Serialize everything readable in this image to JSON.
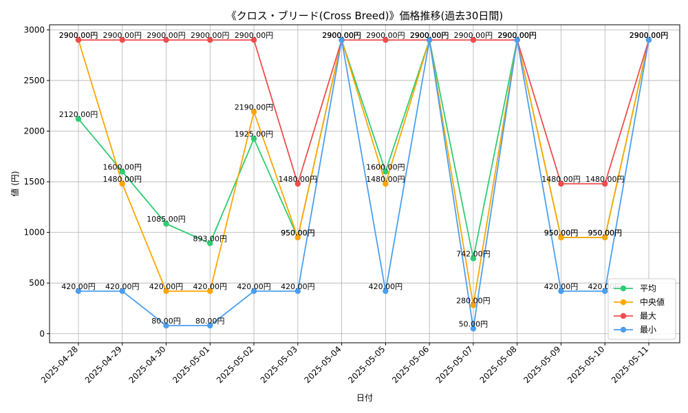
{
  "chart_data": {
    "type": "line",
    "title": "《クロス・ブリード(Cross Breed)》価格推移(過去30日間)",
    "xlabel": "日付",
    "ylabel": "値 (円)",
    "ylim": [
      -90,
      3050
    ],
    "yticks": [
      0,
      500,
      1000,
      1500,
      2000,
      2500,
      3000
    ],
    "grid": true,
    "legend_position": "lower-right",
    "label_suffix": "円",
    "categories": [
      "2025-04-28",
      "2025-04-29",
      "2025-04-30",
      "2025-05-01",
      "2025-05-02",
      "2025-05-03",
      "2025-05-04",
      "2025-05-05",
      "2025-05-06",
      "2025-05-07",
      "2025-05-08",
      "2025-05-09",
      "2025-05-10",
      "2025-05-11"
    ],
    "series": [
      {
        "name": "平均",
        "color": "#2ecc71",
        "values": [
          2120,
          1600,
          1085,
          893,
          1925,
          950,
          2900,
          1600,
          2900,
          742,
          2900,
          950,
          950,
          2900
        ]
      },
      {
        "name": "中央値",
        "color": "#ffa500",
        "values": [
          2900,
          1480,
          420,
          420,
          2190,
          950,
          2900,
          1480,
          2900,
          280,
          2900,
          950,
          950,
          2900
        ]
      },
      {
        "name": "最大",
        "color": "#ef4d4d",
        "values": [
          2900,
          2900,
          2900,
          2900,
          2900,
          1480,
          2900,
          2900,
          2900,
          2900,
          2900,
          1480,
          1480,
          2900
        ]
      },
      {
        "name": "最小",
        "color": "#4a9ef0",
        "values": [
          420,
          420,
          80,
          80,
          420,
          420,
          2900,
          420,
          2900,
          50,
          2900,
          420,
          420,
          2900
        ]
      }
    ]
  }
}
